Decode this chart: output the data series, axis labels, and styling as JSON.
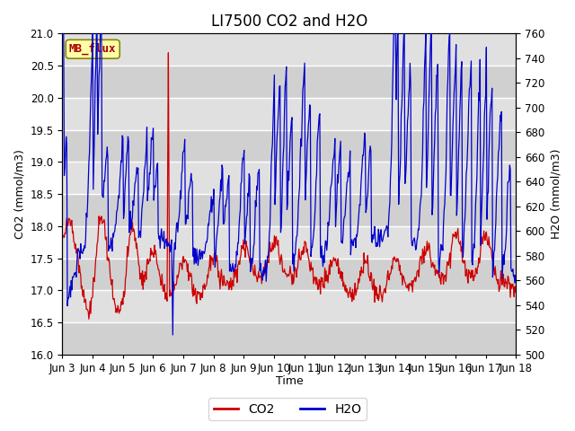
{
  "title": "LI7500 CO2 and H2O",
  "xlabel": "Time",
  "ylabel_left": "CO2 (mmol/m3)",
  "ylabel_right": "H2O (mmol/m3)",
  "co2_ylim": [
    16.0,
    21.0
  ],
  "h2o_ylim": [
    500,
    760
  ],
  "co2_color": "#cc0000",
  "h2o_color": "#0000cc",
  "bg_color": "#e8e8e8",
  "plot_bg": "#dcdcdc",
  "annotation_text": "MB_flux",
  "annotation_bg": "#ffffaa",
  "annotation_border": "#cccc00",
  "annotation_text_color": "#aa0000",
  "tick_labels": [
    "Jun 3",
    "Jun 4",
    "Jun 5",
    "Jun 6",
    "Jun 7",
    "Jun 8",
    "Jun 9",
    "Jun 10",
    "Jun 11",
    "Jun 12",
    "Jun 13",
    "Jun 14",
    "Jun 15",
    "Jun 16",
    "Jun 17",
    "Jun 18"
  ],
  "legend_co2": "CO2",
  "legend_h2o": "H2O",
  "title_fontsize": 12,
  "label_fontsize": 9,
  "tick_fontsize": 8.5
}
